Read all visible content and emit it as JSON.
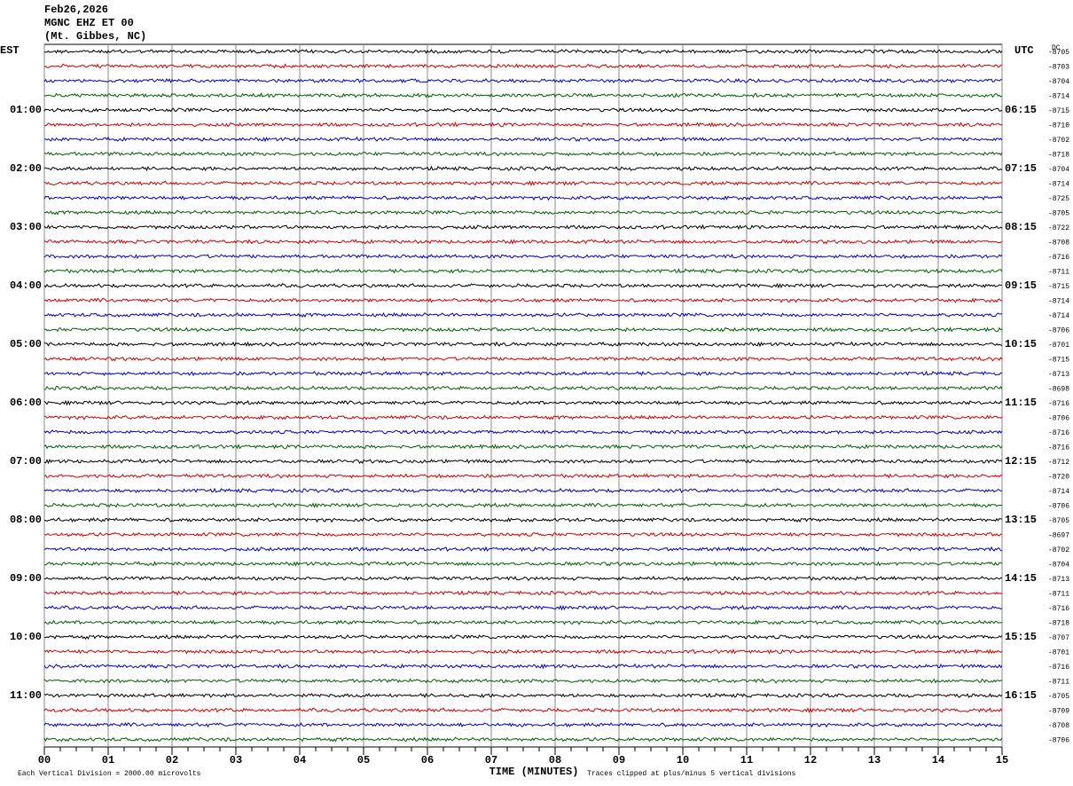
{
  "chart_data": {
    "type": "helicorder",
    "title": "Feb26,2026",
    "subtitle": "MGNC EHZ ET 00",
    "location": "(Mt. Gibbes, NC)",
    "left_axis_label": "EST",
    "right_axis_label": "UTC",
    "dc_label": "DC",
    "hour_labels_left": [
      "01:00",
      "02:00",
      "03:00",
      "04:00",
      "05:00",
      "06:00",
      "07:00",
      "08:00",
      "09:00",
      "10:00",
      "11:00"
    ],
    "hour_labels_right": [
      "06:15",
      "07:15",
      "08:15",
      "09:15",
      "10:15",
      "11:15",
      "12:15",
      "13:15",
      "14:15",
      "15:15",
      "16:15"
    ],
    "trace_colors": [
      "#000000",
      "#d00000",
      "#0000c8",
      "#006000"
    ],
    "dc_offsets": [
      -8705,
      -8703,
      -8704,
      -8714,
      -8715,
      -8710,
      -8702,
      -8718,
      -8704,
      -8714,
      -8725,
      -8705,
      -8722,
      -8708,
      -8716,
      -8711,
      -8715,
      -8714,
      -8714,
      -8706,
      -8701,
      -8715,
      -8713,
      -8698,
      -8716,
      -8706,
      -8716,
      -8716,
      -8712,
      -8720,
      -8714,
      -8706,
      -8705,
      -8697,
      -8702,
      -8704,
      -8713,
      -8711,
      -8716,
      -8718,
      -8707,
      -8701,
      -8716,
      -8711,
      -8705,
      -8709,
      -8708,
      -8706
    ],
    "xlabel": "TIME (MINUTES)",
    "xlim": [
      0,
      15
    ],
    "xticks": [
      {
        "value": 0,
        "label": "00"
      },
      {
        "value": 1,
        "label": "01"
      },
      {
        "value": 2,
        "label": "02"
      },
      {
        "value": 3,
        "label": "03"
      },
      {
        "value": 4,
        "label": "04"
      },
      {
        "value": 5,
        "label": "05"
      },
      {
        "value": 6,
        "label": "06"
      },
      {
        "value": 7,
        "label": "07"
      },
      {
        "value": 8,
        "label": "08"
      },
      {
        "value": 9,
        "label": "09"
      },
      10,
      11,
      12,
      13,
      14,
      15
    ],
    "scale_note": "Each Vertical Division = 2000.00 microvolts",
    "clip_note": "Traces clipped at plus/minus 5 vertical divisions"
  }
}
